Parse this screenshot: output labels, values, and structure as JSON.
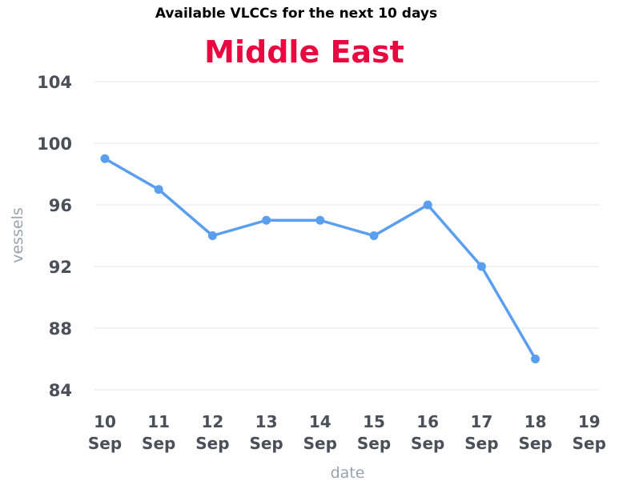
{
  "chart_data": {
    "type": "line",
    "title": "Available VLCCs for the next 10 days",
    "subtitle": "Middle East",
    "xlabel": "date",
    "ylabel": "vessels",
    "categories": [
      [
        "10",
        "Sep"
      ],
      [
        "11",
        "Sep"
      ],
      [
        "12",
        "Sep"
      ],
      [
        "13",
        "Sep"
      ],
      [
        "14",
        "Sep"
      ],
      [
        "15",
        "Sep"
      ],
      [
        "16",
        "Sep"
      ],
      [
        "17",
        "Sep"
      ],
      [
        "18",
        "Sep"
      ],
      [
        "19",
        "Sep"
      ]
    ],
    "series": [
      {
        "values": [
          99,
          97,
          94,
          95,
          95,
          94,
          96,
          92,
          86,
          null
        ]
      }
    ],
    "ylim": [
      84,
      104
    ],
    "yticks": [
      84,
      88,
      92,
      96,
      100,
      104
    ],
    "grid": true,
    "legend": "none",
    "colors": {
      "line": "#5a9ef0",
      "subtitle": "#e8073f"
    }
  }
}
